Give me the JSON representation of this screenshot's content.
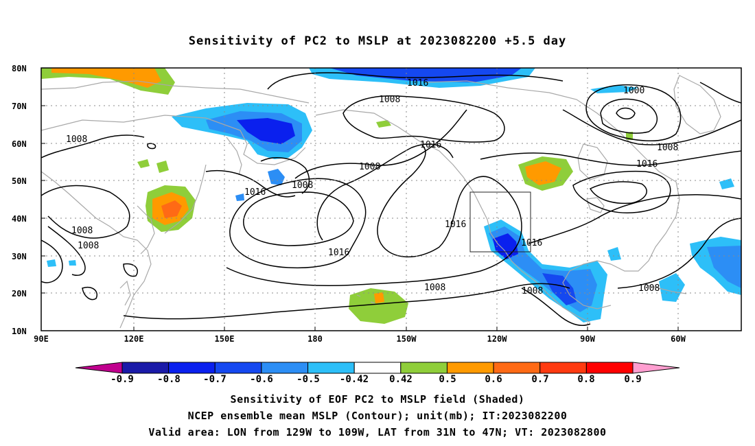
{
  "title": "Sensitivity of PC2 to MSLP at 2023082200 +5.5 day",
  "map": {
    "lat_labels": [
      "80N",
      "70N",
      "60N",
      "50N",
      "40N",
      "30N",
      "20N",
      "10N"
    ],
    "lon_labels": [
      "90E",
      "120E",
      "150E",
      "180",
      "150W",
      "120W",
      "90W",
      "60W"
    ],
    "contour_labels": [
      "1016",
      "1008",
      "1000",
      "1008",
      "1016",
      "1008",
      "1008",
      "1016",
      "1008",
      "1016",
      "1016",
      "1016",
      "1016",
      "1008",
      "1008",
      "1008",
      "1008"
    ],
    "valid_box": {
      "lon": [
        -129,
        -109
      ],
      "lat": [
        31,
        47
      ]
    }
  },
  "colorbar": {
    "labels": [
      "-0.9",
      "-0.8",
      "-0.7",
      "-0.6",
      "-0.5",
      "-0.42",
      "0.42",
      "0.5",
      "0.6",
      "0.7",
      "0.8",
      "0.9"
    ],
    "colors": [
      "#c0008e",
      "#1a1aa8",
      "#0a20ee",
      "#1548f0",
      "#2c8ef5",
      "#2dbff8",
      "#ffffff",
      "#8fce3a",
      "#ff9a00",
      "#ff6a15",
      "#ff3a10",
      "#ff0000",
      "#ff9ed0"
    ]
  },
  "captions": [
    "Sensitivity of EOF PC2 to MSLP field (Shaded)",
    "NCEP ensemble mean MSLP (Contour); unit(mb); IT:2023082200",
    "Valid area: LON from 129W to 109W, LAT from 31N to 47N; VT: 2023082800"
  ]
}
